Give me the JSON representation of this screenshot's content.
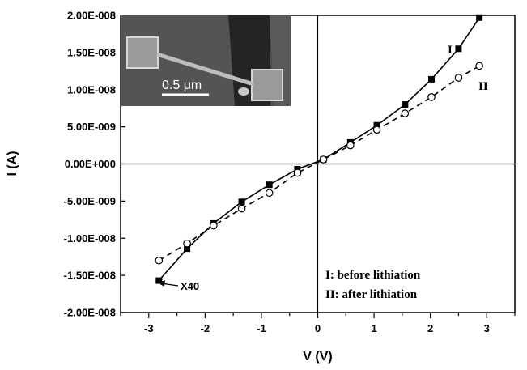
{
  "chart_data": {
    "type": "line",
    "title": "",
    "xlabel": "V (V)",
    "ylabel": "I (A)",
    "xlim": [
      -3.5,
      3.5
    ],
    "ylim": [
      -2e-08,
      2e-08
    ],
    "x_ticks": [
      -3,
      -2,
      -1,
      0,
      1,
      2,
      3
    ],
    "x_tick_labels": [
      "-3",
      "-2",
      "-1",
      "0",
      "1",
      "2",
      "3"
    ],
    "y_ticks": [
      2e-08,
      1.5e-08,
      1e-08,
      5e-09,
      0,
      -5e-09,
      -1e-08,
      -1.5e-08,
      -2e-08
    ],
    "y_tick_labels": [
      "2.00E-008",
      "1.50E-008",
      "1.00E-008",
      "5.00E-009",
      "0.00E+000",
      "-5.00E-009",
      "-1.00E-008",
      "-1.50E-008",
      "-2.00E-008"
    ],
    "series": [
      {
        "name": "I",
        "marker": "filled-square",
        "line": "solid",
        "x": [
          -2.82,
          -2.32,
          -1.85,
          -1.35,
          -0.86,
          -0.36,
          0.1,
          0.58,
          1.05,
          1.55,
          2.02,
          2.5,
          2.87
        ],
        "y": [
          -1.57e-08,
          -1.14e-08,
          -8e-09,
          -5.1e-09,
          -2.8e-09,
          -7e-10,
          6e-10,
          2.9e-09,
          5.2e-09,
          8e-09,
          1.14e-08,
          1.55e-08,
          1.97e-08
        ]
      },
      {
        "name": "II",
        "marker": "open-circle",
        "line": "dashed",
        "x": [
          -2.82,
          -2.32,
          -1.85,
          -1.35,
          -0.86,
          -0.36,
          0.1,
          0.58,
          1.05,
          1.55,
          2.02,
          2.5,
          2.87
        ],
        "y": [
          -1.3e-08,
          -1.07e-08,
          -8.3e-09,
          -6e-09,
          -3.9e-09,
          -1.2e-09,
          6e-10,
          2.5e-09,
          4.6e-09,
          6.8e-09,
          9e-09,
          1.16e-08,
          1.32e-08
        ]
      }
    ],
    "curve_labels": [
      "I",
      "II"
    ],
    "annotation": "X40",
    "legend_text": [
      "I: before lithiation",
      "II: after lithiation"
    ],
    "inset": {
      "scale_bar_label": "0.5 μm"
    },
    "grid": false,
    "colors": {
      "inset_background": "#4a4a4a",
      "marks": "#000000"
    }
  }
}
